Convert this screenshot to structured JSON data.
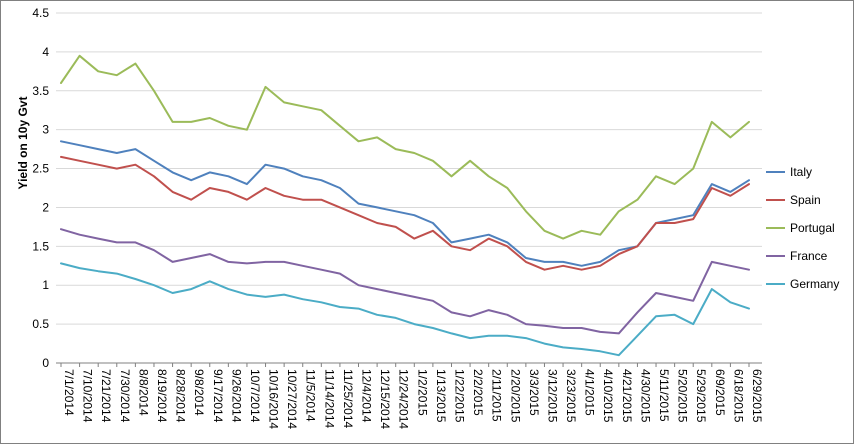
{
  "chart_data": {
    "type": "line",
    "title": "",
    "xlabel": "",
    "ylabel": "Yield on 10y Gvt",
    "ylim": [
      0,
      4.5
    ],
    "ytick_step": 0.5,
    "grid": "horizontal",
    "legend_position": "right",
    "colors": {
      "grid": "#D9D9D9",
      "axis": "#808080",
      "text": "#000000",
      "border": "#808080",
      "background": "#FFFFFF"
    },
    "categories": [
      "7/1/2014",
      "7/10/2014",
      "7/21/2014",
      "7/30/2014",
      "8/8/2014",
      "8/19/2014",
      "8/28/2014",
      "9/8/2014",
      "9/17/2014",
      "9/26/2014",
      "10/7/2014",
      "10/16/2014",
      "10/27/2014",
      "11/5/2014",
      "11/14/2014",
      "11/25/2014",
      "12/4/2014",
      "12/15/2014",
      "12/24/2014",
      "1/2/2015",
      "1/13/2015",
      "1/22/2015",
      "2/2/2015",
      "2/11/2015",
      "2/20/2015",
      "3/3/2015",
      "3/12/2015",
      "3/23/2015",
      "4/1/2015",
      "4/10/2015",
      "4/21/2015",
      "4/30/2015",
      "5/11/2015",
      "5/20/2015",
      "5/29/2015",
      "6/9/2015",
      "6/18/2015",
      "6/29/2015"
    ],
    "series": [
      {
        "name": "Italy",
        "color": "#4F81BD",
        "values": [
          2.85,
          2.8,
          2.75,
          2.7,
          2.75,
          2.6,
          2.45,
          2.35,
          2.45,
          2.4,
          2.3,
          2.55,
          2.5,
          2.4,
          2.35,
          2.25,
          2.05,
          2.0,
          1.95,
          1.9,
          1.8,
          1.55,
          1.6,
          1.65,
          1.55,
          1.35,
          1.3,
          1.3,
          1.25,
          1.3,
          1.45,
          1.5,
          1.8,
          1.85,
          1.9,
          2.3,
          2.2,
          2.35
        ]
      },
      {
        "name": "Spain",
        "color": "#C0504D",
        "values": [
          2.65,
          2.6,
          2.55,
          2.5,
          2.55,
          2.4,
          2.2,
          2.1,
          2.25,
          2.2,
          2.1,
          2.25,
          2.15,
          2.1,
          2.1,
          2.0,
          1.9,
          1.8,
          1.75,
          1.6,
          1.7,
          1.5,
          1.45,
          1.6,
          1.5,
          1.3,
          1.2,
          1.25,
          1.2,
          1.25,
          1.4,
          1.5,
          1.8,
          1.8,
          1.85,
          2.25,
          2.15,
          2.3
        ]
      },
      {
        "name": "Portugal",
        "color": "#9BBB59",
        "values": [
          3.6,
          3.95,
          3.75,
          3.7,
          3.85,
          3.5,
          3.1,
          3.1,
          3.15,
          3.05,
          3.0,
          3.55,
          3.35,
          3.3,
          3.25,
          3.05,
          2.85,
          2.9,
          2.75,
          2.7,
          2.6,
          2.4,
          2.6,
          2.4,
          2.25,
          1.95,
          1.7,
          1.6,
          1.7,
          1.65,
          1.95,
          2.1,
          2.4,
          2.3,
          2.5,
          3.1,
          2.9,
          3.1
        ]
      },
      {
        "name": "France",
        "color": "#8064A2",
        "values": [
          1.72,
          1.65,
          1.6,
          1.55,
          1.55,
          1.45,
          1.3,
          1.35,
          1.4,
          1.3,
          1.28,
          1.3,
          1.3,
          1.25,
          1.2,
          1.15,
          1.0,
          0.95,
          0.9,
          0.85,
          0.8,
          0.65,
          0.6,
          0.68,
          0.62,
          0.5,
          0.48,
          0.45,
          0.45,
          0.4,
          0.38,
          0.65,
          0.9,
          0.85,
          0.8,
          1.3,
          1.25,
          1.2
        ]
      },
      {
        "name": "Germany",
        "color": "#4BACC6",
        "values": [
          1.28,
          1.22,
          1.18,
          1.15,
          1.08,
          1.0,
          0.9,
          0.95,
          1.05,
          0.95,
          0.88,
          0.85,
          0.88,
          0.82,
          0.78,
          0.72,
          0.7,
          0.62,
          0.58,
          0.5,
          0.45,
          0.38,
          0.32,
          0.35,
          0.35,
          0.32,
          0.25,
          0.2,
          0.18,
          0.15,
          0.1,
          0.35,
          0.6,
          0.62,
          0.5,
          0.95,
          0.78,
          0.7
        ]
      }
    ]
  }
}
